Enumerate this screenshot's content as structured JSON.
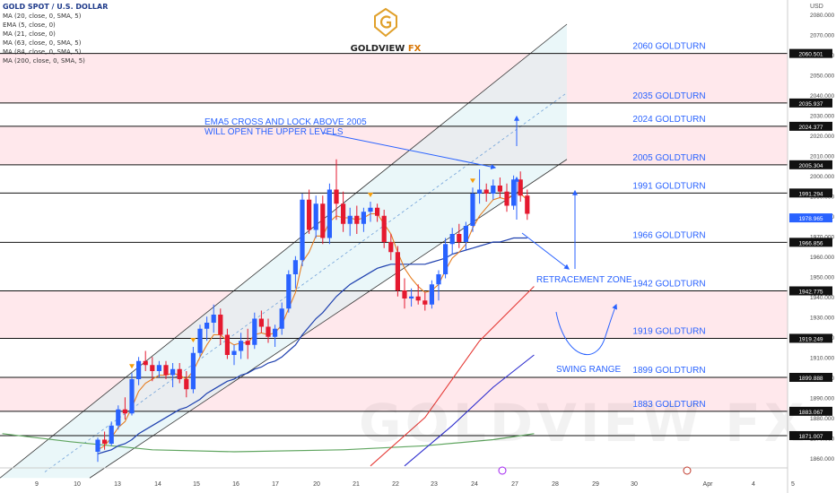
{
  "legend": {
    "title": "GOLD SPOT / U.S. DOLLAR",
    "line1": "MA (20, close, 0, SMA, 5)",
    "indicators": [
      "EMA (5, close, 0)",
      "MA (21, close, 0)",
      "MA (63, close, 0, SMA, 5)",
      "MA (84, close, 0, SMA, 5)",
      "MA (200, close, 0, SMA, 5)"
    ]
  },
  "brand": {
    "name_main": "GOLDVIEW",
    "name_suffix": "FX",
    "watermark": "GOLDVIEW FX"
  },
  "currency": "USD",
  "colors": {
    "candle_up": "#2962ff",
    "candle_down": "#e5192f",
    "level_label": "#2962ff",
    "zone_pink": "#ffe0e6",
    "channel_fill": "#d9f0f4",
    "ema5": "#e67e22",
    "ma21": "#1e40af",
    "ma63": "#e53935",
    "ma84": "#2c2cce",
    "ma200": "#5fa55f"
  },
  "chart_data": {
    "type": "candlestick",
    "xlabels": [
      "9",
      "10",
      "13",
      "14",
      "15",
      "16",
      "17",
      "20",
      "21",
      "22",
      "23",
      "24",
      "27",
      "28",
      "29",
      "30",
      "Apr",
      "4",
      "5"
    ],
    "ylim": [
      1855,
      2087
    ],
    "y_ticks": [
      1860,
      1870,
      1880,
      1890,
      1900,
      1910,
      1920,
      1930,
      1940,
      1950,
      1960,
      1970,
      1980,
      1990,
      2000,
      2010,
      2020,
      2030,
      2040,
      2050,
      2060,
      2070,
      2080
    ],
    "price_badges": [
      {
        "value": "2060.501",
        "dark": true
      },
      {
        "value": "2035.937",
        "dark": true
      },
      {
        "value": "2024.377",
        "dark": true
      },
      {
        "value": "2005.304",
        "dark": true
      },
      {
        "value": "1991.294",
        "dark": true
      },
      {
        "value": "1978.965",
        "dark": false
      },
      {
        "value": "1966.856",
        "dark": true
      },
      {
        "value": "1942.775",
        "dark": true
      },
      {
        "value": "1919.249",
        "dark": true
      },
      {
        "value": "1899.888",
        "dark": true
      },
      {
        "value": "1883.067",
        "dark": true
      },
      {
        "value": "1871.007",
        "dark": true
      }
    ],
    "levels": [
      {
        "label": "2060 GOLDTURN",
        "price": 2060.501
      },
      {
        "label": "2035 GOLDTURN",
        "price": 2035.937
      },
      {
        "label": "2024 GOLDTURN",
        "price": 2024.377
      },
      {
        "label": "2005 GOLDTURN",
        "price": 2005.304
      },
      {
        "label": "1991 GOLDTURN",
        "price": 1991.294
      },
      {
        "label": "1966 GOLDTURN",
        "price": 1966.856
      },
      {
        "label": "1942 GOLDTURN",
        "price": 1942.775
      },
      {
        "label": "1919 GOLDTURN",
        "price": 1919.249
      },
      {
        "label": "1899 GOLDTURN",
        "price": 1899.888
      },
      {
        "label": "1883 GOLDTURN",
        "price": 1883.067
      }
    ],
    "zones": [
      [
        2035.937,
        2060.501
      ],
      [
        2005.304,
        2024.377
      ],
      [
        1919.249,
        1942.775
      ],
      [
        1883.067,
        1899.888
      ]
    ],
    "annotations": {
      "ema_note_line1": "EMA5 CROSS AND LOCK ABOVE 2005",
      "ema_note_line2": "WILL OPEN THE UPPER LEVELS",
      "retracement": "RETRACEMENT ZONE",
      "swing": "SWING RANGE"
    },
    "candles": [
      [
        1863,
        1870,
        1858,
        1869
      ],
      [
        1869,
        1873,
        1864,
        1867
      ],
      [
        1867,
        1878,
        1866,
        1876
      ],
      [
        1876,
        1886,
        1874,
        1884
      ],
      [
        1884,
        1890,
        1879,
        1882
      ],
      [
        1882,
        1902,
        1881,
        1899
      ],
      [
        1899,
        1910,
        1896,
        1908
      ],
      [
        1908,
        1913,
        1903,
        1906
      ],
      [
        1906,
        1910,
        1898,
        1903
      ],
      [
        1903,
        1908,
        1900,
        1906
      ],
      [
        1906,
        1908,
        1899,
        1901
      ],
      [
        1901,
        1907,
        1895,
        1904
      ],
      [
        1904,
        1907,
        1897,
        1899
      ],
      [
        1899,
        1903,
        1890,
        1894
      ],
      [
        1894,
        1915,
        1892,
        1912
      ],
      [
        1912,
        1926,
        1910,
        1924
      ],
      [
        1924,
        1930,
        1918,
        1927
      ],
      [
        1927,
        1936,
        1922,
        1931
      ],
      [
        1931,
        1934,
        1916,
        1921
      ],
      [
        1921,
        1924,
        1909,
        1911
      ],
      [
        1911,
        1916,
        1906,
        1913
      ],
      [
        1913,
        1922,
        1909,
        1918
      ],
      [
        1918,
        1924,
        1909,
        1916
      ],
      [
        1916,
        1932,
        1914,
        1929
      ],
      [
        1929,
        1933,
        1922,
        1925
      ],
      [
        1925,
        1929,
        1917,
        1920
      ],
      [
        1920,
        1926,
        1915,
        1924
      ],
      [
        1924,
        1937,
        1921,
        1934
      ],
      [
        1934,
        1953,
        1932,
        1951
      ],
      [
        1951,
        1960,
        1944,
        1958
      ],
      [
        1958,
        1991,
        1955,
        1988
      ],
      [
        1988,
        1993,
        1971,
        1973
      ],
      [
        1973,
        1990,
        1969,
        1986
      ],
      [
        1986,
        1990,
        1966,
        1969
      ],
      [
        1969,
        1996,
        1966,
        1993
      ],
      [
        1993,
        2008,
        1978,
        1986
      ],
      [
        1986,
        1992,
        1972,
        1976
      ],
      [
        1976,
        1984,
        1970,
        1980
      ],
      [
        1980,
        1985,
        1971,
        1976
      ],
      [
        1976,
        1984,
        1972,
        1982
      ],
      [
        1982,
        1987,
        1977,
        1984
      ],
      [
        1984,
        1986,
        1977,
        1980
      ],
      [
        1980,
        1983,
        1964,
        1967
      ],
      [
        1967,
        1971,
        1958,
        1962
      ],
      [
        1962,
        1965,
        1940,
        1943
      ],
      [
        1943,
        1949,
        1934,
        1939
      ],
      [
        1939,
        1944,
        1935,
        1940
      ],
      [
        1940,
        1946,
        1936,
        1938
      ],
      [
        1938,
        1942,
        1933,
        1936
      ],
      [
        1936,
        1948,
        1934,
        1946
      ],
      [
        1946,
        1953,
        1938,
        1951
      ],
      [
        1951,
        1969,
        1949,
        1966
      ],
      [
        1966,
        1974,
        1961,
        1971
      ],
      [
        1971,
        1976,
        1964,
        1967
      ],
      [
        1967,
        1977,
        1963,
        1975
      ],
      [
        1975,
        1994,
        1972,
        1991
      ],
      [
        1991,
        2003,
        1986,
        1993
      ],
      [
        1993,
        1996,
        1987,
        1991
      ],
      [
        1991,
        1998,
        1988,
        1995
      ],
      [
        1995,
        1999,
        1989,
        1992
      ],
      [
        1992,
        1996,
        1982,
        1985
      ],
      [
        1985,
        2000,
        1983,
        1998
      ],
      [
        1998,
        2002,
        1987,
        1990
      ],
      [
        1990,
        1993,
        1978,
        1981
      ]
    ],
    "ema5": [
      1864,
      1866,
      1870,
      1875,
      1878,
      1885,
      1893,
      1897,
      1899,
      1901,
      1901,
      1902,
      1901,
      1899,
      1903,
      1910,
      1916,
      1921,
      1921,
      1918,
      1916,
      1917,
      1917,
      1921,
      1922,
      1921,
      1922,
      1926,
      1934,
      1942,
      1957,
      1962,
      1970,
      1970,
      1977,
      1980,
      1979,
      1979,
      1978,
      1979,
      1981,
      1981,
      1976,
      1971,
      1962,
      1954,
      1949,
      1945,
      1942,
      1943,
      1946,
      1953,
      1959,
      1962,
      1966,
      1974,
      1980,
      1984,
      1988,
      1989,
      1988,
      1991,
      1991,
      1988
    ],
    "ma21": [
      1862,
      1863,
      1864,
      1866,
      1867,
      1869,
      1872,
      1874,
      1876,
      1878,
      1880,
      1882,
      1884,
      1885,
      1887,
      1889,
      1892,
      1894,
      1896,
      1898,
      1899,
      1901,
      1902,
      1904,
      1905,
      1907,
      1908,
      1910,
      1913,
      1916,
      1921,
      1925,
      1929,
      1932,
      1936,
      1940,
      1943,
      1946,
      1948,
      1950,
      1952,
      1954,
      1955,
      1956,
      1956,
      1956,
      1956,
      1956,
      1956,
      1957,
      1958,
      1959,
      1961,
      1962,
      1963,
      1964,
      1965,
      1966,
      1967,
      1967,
      1968,
      1969,
      1969,
      1969
    ],
    "ma63": [
      {
        "i": 40,
        "y": 1856
      },
      {
        "i": 48,
        "y": 1880
      },
      {
        "i": 56,
        "y": 1918
      },
      {
        "i": 64,
        "y": 1945
      }
    ],
    "ma84": [
      {
        "i": 45,
        "y": 1856
      },
      {
        "i": 52,
        "y": 1876
      },
      {
        "i": 58,
        "y": 1895
      },
      {
        "i": 64,
        "y": 1911
      }
    ],
    "ma200": [
      {
        "i": -14,
        "y": 1872
      },
      {
        "i": -4,
        "y": 1868
      },
      {
        "i": 8,
        "y": 1864
      },
      {
        "i": 20,
        "y": 1863
      },
      {
        "i": 36,
        "y": 1864
      },
      {
        "i": 48,
        "y": 1866
      },
      {
        "i": 58,
        "y": 1869
      },
      {
        "i": 64,
        "y": 1872
      }
    ],
    "markers": [
      {
        "i": 5,
        "type": "down-triangle"
      },
      {
        "i": 14,
        "type": "down-triangle"
      },
      {
        "i": 40,
        "type": "down-triangle"
      },
      {
        "i": 55,
        "type": "down-triangle"
      }
    ]
  }
}
